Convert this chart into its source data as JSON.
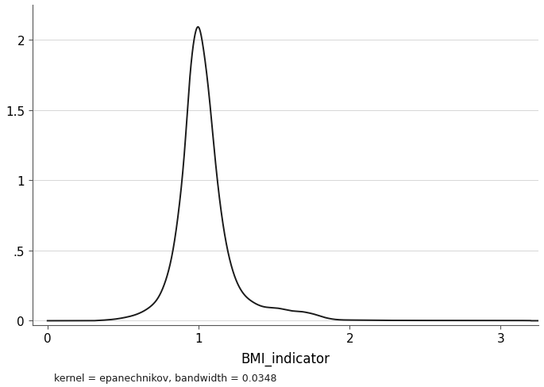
{
  "title": "",
  "xlabel": "BMI_indicator",
  "annotation": "kernel = epanechnikov, bandwidth = 0.0348",
  "xlim": [
    -0.1,
    3.25
  ],
  "ylim": [
    -0.03,
    2.25
  ],
  "xticks": [
    0,
    1,
    2,
    3
  ],
  "yticks": [
    0,
    0.5,
    1,
    1.5,
    2
  ],
  "ytick_labels": [
    "0",
    ".5",
    "1",
    "1.5",
    "2"
  ],
  "line_color": "#1a1a1a",
  "line_width": 1.4,
  "background_color": "#ffffff",
  "grid_color": "#d0d0d0",
  "figsize": [
    6.85,
    4.89
  ],
  "dpi": 100,
  "key_x": [
    0.0,
    0.3,
    0.38,
    0.45,
    0.52,
    0.58,
    0.63,
    0.68,
    0.73,
    0.78,
    0.83,
    0.87,
    0.91,
    0.94,
    0.97,
    1.0,
    1.03,
    1.07,
    1.11,
    1.16,
    1.22,
    1.28,
    1.35,
    1.43,
    1.52,
    1.62,
    1.68,
    1.72,
    1.77,
    1.83,
    1.9,
    2.0,
    2.2,
    2.5,
    3.2
  ],
  "key_y": [
    0.0,
    0.0,
    0.005,
    0.012,
    0.025,
    0.042,
    0.065,
    0.1,
    0.16,
    0.28,
    0.5,
    0.8,
    1.25,
    1.7,
    2.0,
    2.09,
    1.95,
    1.6,
    1.15,
    0.7,
    0.38,
    0.22,
    0.14,
    0.1,
    0.09,
    0.07,
    0.065,
    0.058,
    0.045,
    0.025,
    0.01,
    0.005,
    0.003,
    0.002,
    0.001
  ]
}
